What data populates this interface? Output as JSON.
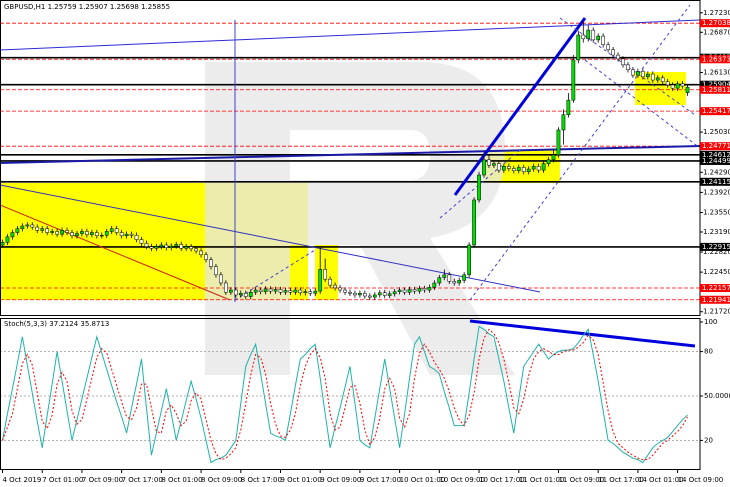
{
  "chart_data": [
    {
      "type": "candlestick",
      "title": "GBPUSD,H1  1.25759 1.25907 1.25698 1.25855",
      "up_color": "#00dd00",
      "down_color": "#ffffff",
      "categories": [
        "4 Oct 2019",
        null,
        null,
        null,
        null,
        null,
        null,
        null,
        "7 Oct 01:00",
        null,
        null,
        null,
        null,
        null,
        null,
        null,
        "7 Oct 09:00",
        null,
        null,
        null,
        null,
        null,
        null,
        null,
        "7 Oct 17:00",
        null,
        null,
        null,
        null,
        null,
        null,
        null,
        "8 Oct 01:00",
        null,
        null,
        null,
        null,
        null,
        null,
        null,
        "8 Oct 09:00",
        null,
        null,
        null,
        null,
        null,
        null,
        null,
        "8 Oct 17:00",
        null,
        null,
        null,
        null,
        null,
        null,
        null,
        "9 Oct 01:00",
        null,
        null,
        null,
        null,
        null,
        null,
        null,
        "9 Oct 09:00",
        null,
        null,
        null,
        null,
        null,
        null,
        null,
        "9 Oct 17:00",
        null,
        null,
        null,
        null,
        null,
        null,
        null,
        "10 Oct 01:00",
        null,
        null,
        null,
        null,
        null,
        null,
        null,
        "10 Oct 09:00",
        null,
        null,
        null,
        null,
        null,
        null,
        null,
        "10 Oct 17:00",
        null,
        null,
        null,
        null,
        null,
        null,
        null,
        "11 Oct 01:00",
        null,
        null,
        null,
        null,
        null,
        null,
        null,
        "11 Oct 09:00",
        null,
        null,
        null,
        null,
        null,
        null,
        null,
        "11 Oct 17:00",
        null,
        null,
        null,
        null,
        null,
        null,
        null,
        "14 Oct 01:00",
        null,
        null,
        null,
        null,
        null,
        null,
        null,
        "14 Oct 09:00",
        null,
        null
      ],
      "open": [
        1.2295,
        1.23,
        1.231,
        1.2318,
        1.2325,
        1.233,
        1.2332,
        1.2328,
        1.2322,
        1.2325,
        1.2318,
        1.232,
        1.2315,
        1.2322,
        1.2318,
        1.2312,
        1.2316,
        1.232,
        1.2314,
        1.2318,
        1.2312,
        1.2313,
        1.232,
        1.2325,
        1.2318,
        1.2312,
        1.2315,
        1.2313,
        1.2305,
        1.2298,
        1.2292,
        1.2289,
        1.2292,
        1.2295,
        1.229,
        1.2293,
        1.2296,
        1.2289,
        1.2292,
        1.2288,
        1.2284,
        1.2277,
        1.2268,
        1.2255,
        1.224,
        1.2225,
        1.2208,
        1.2212,
        1.2203,
        1.2206,
        1.22,
        1.2208,
        1.2212,
        1.2209,
        1.2214,
        1.221,
        1.2213,
        1.2208,
        1.2211,
        1.2208,
        1.2212,
        1.2207,
        1.2209,
        1.2206,
        1.221,
        1.225,
        1.2232,
        1.2221,
        1.2216,
        1.2212,
        1.2208,
        1.2206,
        1.2203,
        1.2206,
        1.2201,
        1.2199,
        1.2203,
        1.2207,
        1.2202,
        1.2205,
        1.2209,
        1.2212,
        1.2208,
        1.2213,
        1.221,
        1.2215,
        1.2212,
        1.2217,
        1.2225,
        1.2235,
        1.224,
        1.2228,
        1.2225,
        1.223,
        1.224,
        1.2295,
        1.2378,
        1.2424,
        1.2452,
        1.2442,
        1.2445,
        1.2433,
        1.244,
        1.2436,
        1.2432,
        1.2438,
        1.243,
        1.2435,
        1.244,
        1.2433,
        1.2445,
        1.2452,
        1.2461,
        1.2507,
        1.2535,
        1.2562,
        1.2636,
        1.2682,
        1.2675,
        1.2691,
        1.2673,
        1.268,
        1.2664,
        1.2655,
        1.2645,
        1.2638,
        1.2627,
        1.2618,
        1.2608,
        1.2615,
        1.2605,
        1.261,
        1.2599,
        1.2603,
        1.2596,
        1.259,
        1.2584,
        1.2592,
        1.25759
      ],
      "high": [
        1.2305,
        1.2315,
        1.2323,
        1.233,
        1.2335,
        1.2337,
        1.2337,
        1.2333,
        1.233,
        1.233,
        1.2325,
        1.2325,
        1.2327,
        1.2327,
        1.2323,
        1.2321,
        1.2325,
        1.2325,
        1.2323,
        1.2323,
        1.2318,
        1.2325,
        1.233,
        1.233,
        1.2323,
        1.232,
        1.232,
        1.2318,
        1.231,
        1.2303,
        1.2297,
        1.2297,
        1.23,
        1.23,
        1.2298,
        1.2301,
        1.2301,
        1.2297,
        1.2297,
        1.2293,
        1.2289,
        1.2282,
        1.2273,
        1.226,
        1.2245,
        1.223,
        1.2217,
        1.2217,
        1.2211,
        1.2211,
        1.2213,
        1.2217,
        1.2217,
        1.2219,
        1.2219,
        1.2218,
        1.2218,
        1.2216,
        1.2216,
        1.2217,
        1.2217,
        1.2214,
        1.2214,
        1.2215,
        1.229,
        1.227,
        1.2237,
        1.2226,
        1.2221,
        1.2217,
        1.2213,
        1.2211,
        1.2211,
        1.2211,
        1.2206,
        1.2208,
        1.2212,
        1.2212,
        1.221,
        1.2214,
        1.2217,
        1.2217,
        1.2218,
        1.2218,
        1.222,
        1.222,
        1.2222,
        1.223,
        1.224,
        1.225,
        1.2245,
        1.2233,
        1.2235,
        1.2245,
        1.23,
        1.2383,
        1.243,
        1.2466,
        1.246,
        1.245,
        1.245,
        1.2445,
        1.2445,
        1.2441,
        1.2443,
        1.2443,
        1.244,
        1.2445,
        1.2445,
        1.245,
        1.2457,
        1.247,
        1.2512,
        1.2545,
        1.2575,
        1.2645,
        1.269,
        1.2706,
        1.27,
        1.2696,
        1.2685,
        1.2685,
        1.2669,
        1.266,
        1.265,
        1.2643,
        1.2632,
        1.2623,
        1.262,
        1.262,
        1.2615,
        1.2615,
        1.2608,
        1.2608,
        1.2601,
        1.2595,
        1.2597,
        1.2597,
        1.25907
      ],
      "low": [
        1.229,
        1.2295,
        1.2305,
        1.2313,
        1.232,
        1.2325,
        1.2323,
        1.2317,
        1.2317,
        1.2313,
        1.2313,
        1.231,
        1.231,
        1.2313,
        1.2307,
        1.2307,
        1.2311,
        1.2309,
        1.2309,
        1.2307,
        1.2307,
        1.2308,
        1.2315,
        1.2313,
        1.2307,
        1.2307,
        1.2308,
        1.23,
        1.2293,
        1.2287,
        1.2284,
        1.2284,
        1.2287,
        1.2285,
        1.2285,
        1.2288,
        1.2284,
        1.2284,
        1.2283,
        1.2279,
        1.2272,
        1.2263,
        1.225,
        1.2235,
        1.222,
        1.2203,
        1.2203,
        1.2198,
        1.2198,
        1.2195,
        1.2195,
        1.2203,
        1.2204,
        1.2204,
        1.2205,
        1.2205,
        1.2203,
        1.2203,
        1.2203,
        1.2203,
        1.2202,
        1.2202,
        1.2201,
        1.2201,
        1.2205,
        1.2227,
        1.2216,
        1.2211,
        1.2207,
        1.2203,
        1.2201,
        1.2198,
        1.2198,
        1.2196,
        1.2194,
        1.2194,
        1.2198,
        1.2197,
        1.2197,
        1.22,
        1.2204,
        1.2203,
        1.2203,
        1.2205,
        1.2205,
        1.2207,
        1.2207,
        1.2212,
        1.222,
        1.223,
        1.2223,
        1.222,
        1.222,
        1.2225,
        1.2235,
        1.229,
        1.2373,
        1.2419,
        1.2437,
        1.2437,
        1.2428,
        1.2428,
        1.2431,
        1.2427,
        1.2427,
        1.2425,
        1.2425,
        1.243,
        1.2428,
        1.2428,
        1.244,
        1.2447,
        1.2456,
        1.248,
        1.253,
        1.2557,
        1.263,
        1.2668,
        1.267,
        1.2668,
        1.2668,
        1.2659,
        1.265,
        1.264,
        1.2633,
        1.2622,
        1.2613,
        1.2603,
        1.2603,
        1.26,
        1.26,
        1.2594,
        1.2594,
        1.2591,
        1.2585,
        1.2579,
        1.2579,
        1.2583,
        1.25698
      ],
      "close": [
        1.23,
        1.231,
        1.2318,
        1.2325,
        1.233,
        1.2332,
        1.2328,
        1.2322,
        1.2325,
        1.2318,
        1.232,
        1.2315,
        1.2322,
        1.2318,
        1.2312,
        1.2316,
        1.232,
        1.2314,
        1.2318,
        1.2312,
        1.2313,
        1.232,
        1.2325,
        1.2318,
        1.2312,
        1.2315,
        1.2313,
        1.2305,
        1.2298,
        1.2292,
        1.2289,
        1.2292,
        1.2295,
        1.229,
        1.2293,
        1.2296,
        1.2289,
        1.2292,
        1.2288,
        1.2284,
        1.2277,
        1.2268,
        1.2255,
        1.224,
        1.2225,
        1.2208,
        1.2212,
        1.2203,
        1.2206,
        1.22,
        1.2208,
        1.2212,
        1.2209,
        1.2214,
        1.221,
        1.2213,
        1.2208,
        1.2211,
        1.2208,
        1.2212,
        1.2207,
        1.2209,
        1.2206,
        1.221,
        1.225,
        1.2232,
        1.2221,
        1.2216,
        1.2212,
        1.2208,
        1.2206,
        1.2203,
        1.2206,
        1.2201,
        1.2199,
        1.2203,
        1.2207,
        1.2202,
        1.2205,
        1.2209,
        1.2212,
        1.2208,
        1.2213,
        1.221,
        1.2215,
        1.2212,
        1.2217,
        1.2225,
        1.2235,
        1.224,
        1.2228,
        1.2225,
        1.223,
        1.224,
        1.2295,
        1.2378,
        1.2424,
        1.2452,
        1.2442,
        1.2445,
        1.2433,
        1.244,
        1.2436,
        1.2432,
        1.2438,
        1.243,
        1.2435,
        1.244,
        1.2433,
        1.2445,
        1.2452,
        1.2461,
        1.2507,
        1.2535,
        1.2562,
        1.2636,
        1.2682,
        1.2675,
        1.2691,
        1.2673,
        1.268,
        1.2664,
        1.2655,
        1.2645,
        1.2638,
        1.2627,
        1.2618,
        1.2608,
        1.2615,
        1.2605,
        1.261,
        1.2599,
        1.2603,
        1.2596,
        1.259,
        1.2584,
        1.2592,
        1.2588,
        1.25855
      ],
      "ylim": [
        1.2166,
        1.2741
      ],
      "yticks": [
        {
          "value": 1.2723,
          "label": "1.27230"
        },
        {
          "value": 1.2687,
          "label": "1.26870"
        },
        {
          "value": 1.2613,
          "label": "1.26130"
        },
        {
          "value": 1.2503,
          "label": "1.25030"
        },
        {
          "value": 1.2429,
          "label": "1.24290"
        },
        {
          "value": 1.2392,
          "label": "1.23920"
        },
        {
          "value": 1.2355,
          "label": "1.23550"
        },
        {
          "value": 1.2319,
          "label": "1.23190"
        },
        {
          "value": 1.2282,
          "label": "1.22820"
        },
        {
          "value": 1.2245,
          "label": "1.22450"
        },
        {
          "value": 1.2172,
          "label": "1.21720"
        }
      ],
      "levels": [
        {
          "value": 1.27038,
          "color": "#ff0000"
        },
        {
          "value": 1.26402,
          "color": "#000000"
        },
        {
          "value": 1.26373,
          "color": "#ff0000"
        },
        {
          "value": 1.25904,
          "color": "#000000"
        },
        {
          "value": 1.25811,
          "color": "#ff0000"
        },
        {
          "value": 1.25417,
          "color": "#ff0000"
        },
        {
          "value": 1.24771,
          "color": "#ff0000"
        },
        {
          "value": 1.24612,
          "color": "#000000"
        },
        {
          "value": 1.24499,
          "color": "#000000"
        },
        {
          "value": 1.24115,
          "color": "#000000"
        },
        {
          "value": 1.22915,
          "color": "#000000"
        },
        {
          "value": 1.22157,
          "color": "#ff0000"
        },
        {
          "value": 1.21941,
          "color": "#ff0000"
        }
      ]
    },
    {
      "type": "line",
      "title": "Stoch(5,3,3) 37.2124 35.8713",
      "ylim": [
        0,
        100
      ],
      "yticks": [
        100,
        80,
        {
          "value": 50,
          "label": "50.0000"
        },
        20
      ],
      "levels": [
        80,
        50,
        20
      ],
      "series": [
        {
          "color": "#20b2aa",
          "dash": false,
          "values": [
            20,
            38,
            55,
            72,
            90,
            71,
            52,
            33,
            15,
            37,
            58,
            80,
            60,
            40,
            20,
            34,
            48,
            62,
            76,
            90,
            79,
            68,
            57,
            46,
            36,
            25,
            42,
            58,
            75,
            42,
            10,
            25,
            40,
            55,
            38,
            20,
            33,
            47,
            60,
            48,
            35,
            20,
            5,
            7,
            8,
            10,
            15,
            20,
            45,
            70,
            78,
            85,
            65,
            45,
            25,
            23,
            22,
            20,
            38,
            57,
            75,
            78,
            82,
            85,
            62,
            38,
            15,
            29,
            42,
            56,
            70,
            45,
            20,
            17,
            15,
            35,
            55,
            75,
            55,
            35,
            15,
            38,
            62,
            85,
            90,
            80,
            70,
            68,
            65,
            53,
            42,
            30,
            30,
            30,
            52,
            75,
            97,
            95,
            92,
            90,
            75,
            60,
            42,
            25,
            48,
            70,
            75,
            80,
            85,
            80,
            75,
            78,
            80,
            81,
            81,
            82,
            86,
            91,
            95,
            78,
            60,
            40,
            20,
            18,
            15,
            12,
            10,
            8,
            7,
            5,
            10,
            15,
            18,
            20,
            22,
            26,
            30,
            34,
            37.2124
          ]
        },
        {
          "color": "#ff0000",
          "dash": true,
          "values": [
            20,
            29,
            38,
            55,
            72,
            78,
            71,
            52,
            33,
            28,
            37,
            58,
            66,
            60,
            40,
            31,
            34,
            48,
            62,
            76,
            82,
            79,
            68,
            57,
            46,
            36,
            34,
            42,
            58,
            58,
            42,
            26,
            25,
            40,
            44,
            38,
            30,
            33,
            47,
            52,
            48,
            34,
            20,
            11,
            7,
            8,
            11,
            15,
            27,
            45,
            64,
            78,
            76,
            65,
            45,
            31,
            23,
            22,
            27,
            38,
            57,
            70,
            78,
            82,
            76,
            62,
            38,
            27,
            29,
            42,
            56,
            57,
            45,
            27,
            17,
            22,
            35,
            55,
            62,
            55,
            35,
            29,
            38,
            62,
            79,
            85,
            80,
            73,
            68,
            62,
            53,
            42,
            34,
            30,
            37,
            52,
            75,
            89,
            95,
            92,
            86,
            75,
            59,
            42,
            38,
            48,
            64,
            75,
            80,
            82,
            80,
            78,
            78,
            80,
            81,
            81,
            83,
            86,
            91,
            88,
            78,
            59,
            40,
            26,
            18,
            15,
            12,
            10,
            8,
            7,
            7,
            10,
            14,
            18,
            20,
            23,
            26,
            30,
            35.8713
          ]
        }
      ]
    }
  ]
}
